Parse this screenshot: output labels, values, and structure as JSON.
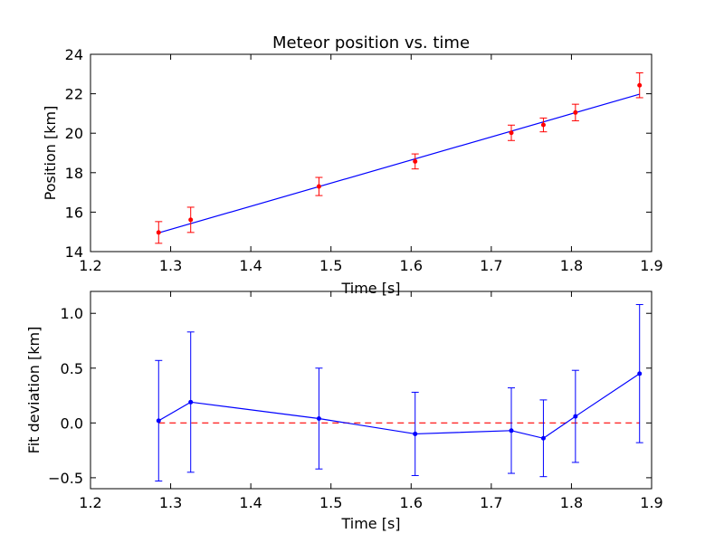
{
  "chart_data": [
    {
      "type": "scatter",
      "title": "Meteor position vs. time",
      "xlabel": "Time [s]",
      "ylabel": "Position [km]",
      "xlim": [
        1.2,
        1.9
      ],
      "ylim": [
        14,
        24
      ],
      "xticks": [
        "1.2",
        "1.3",
        "1.4",
        "1.5",
        "1.6",
        "1.7",
        "1.8",
        "1.9"
      ],
      "yticks": [
        "14",
        "16",
        "18",
        "20",
        "22",
        "24"
      ],
      "grid": false,
      "colors": {
        "points": "#ff0000",
        "errorbars": "#ff0000",
        "fit": "#0000ff"
      },
      "series": [
        {
          "x": [
            1.285,
            1.325,
            1.485,
            1.605,
            1.725,
            1.765,
            1.805,
            1.885
          ],
          "y": [
            14.97,
            15.61,
            17.3,
            18.57,
            20.02,
            20.42,
            21.05,
            22.43
          ],
          "yerr": [
            0.55,
            0.64,
            0.46,
            0.38,
            0.39,
            0.35,
            0.42,
            0.63
          ]
        }
      ],
      "fit_line": {
        "x": [
          1.285,
          1.885
        ],
        "y": [
          14.95,
          21.98
        ]
      }
    },
    {
      "type": "line",
      "title": "",
      "xlabel": "Time [s]",
      "ylabel": "Fit deviation [km]",
      "xlim": [
        1.2,
        1.9
      ],
      "ylim": [
        -0.6,
        1.2
      ],
      "xticks": [
        "1.2",
        "1.3",
        "1.4",
        "1.5",
        "1.6",
        "1.7",
        "1.8",
        "1.9"
      ],
      "yticks": [
        "−0.5",
        "0.0",
        "0.5",
        "1.0"
      ],
      "yticks_values": [
        -0.5,
        0.0,
        0.5,
        1.0
      ],
      "grid": false,
      "colors": {
        "line": "#0000ff",
        "errorbars": "#0000ff",
        "zero_line": "#ff0000"
      },
      "series": [
        {
          "x": [
            1.285,
            1.325,
            1.485,
            1.605,
            1.725,
            1.765,
            1.805,
            1.885
          ],
          "y": [
            0.02,
            0.19,
            0.04,
            -0.1,
            -0.07,
            -0.14,
            0.06,
            0.45
          ],
          "yerr": [
            0.55,
            0.64,
            0.46,
            0.38,
            0.39,
            0.35,
            0.42,
            0.63
          ]
        }
      ],
      "reference_line": {
        "y": 0,
        "style": "dashed"
      }
    }
  ]
}
